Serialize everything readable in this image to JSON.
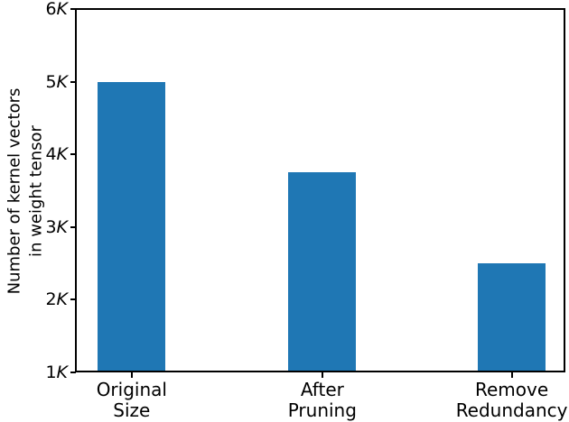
{
  "figure": {
    "background": "#ffffff"
  },
  "chart_data": {
    "type": "bar",
    "title": "",
    "categories": [
      "Original\nSize",
      "After\nPruning",
      "Remove\nRedundancy"
    ],
    "values": [
      5000,
      3750,
      2500
    ],
    "xlabel": "",
    "ylabel": "Number of kernel vectors\nin weight tensor",
    "ylim": [
      1000,
      6000
    ],
    "ytick_values": [
      1000,
      2000,
      3000,
      4000,
      5000,
      6000
    ],
    "ytick_labels": [
      "1K",
      "2K",
      "3K",
      "4K",
      "5K",
      "6K"
    ],
    "grid": false,
    "legend": null,
    "bar_color": "#1f77b4",
    "axis_color": "#000000"
  }
}
